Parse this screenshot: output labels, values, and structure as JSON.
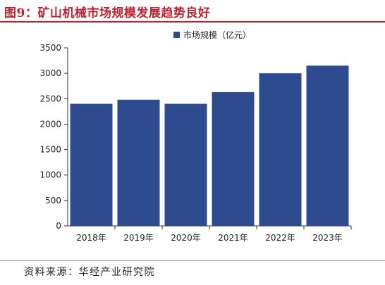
{
  "figure": {
    "title": "图9：矿山机械市场规模发展趋势良好",
    "source_label": "资料来源：",
    "source": "华经产业研究院"
  },
  "colors": {
    "title": "#c0222f",
    "bar": "#2f4b8f",
    "axis": "#333333"
  },
  "chart_data": {
    "type": "bar",
    "categories": [
      "2018年",
      "2019年",
      "2020年",
      "2021年",
      "2022年",
      "2023年"
    ],
    "series": [
      {
        "name": "市场规模（亿元）",
        "values": [
          2400,
          2480,
          2400,
          2630,
          3000,
          3150
        ]
      }
    ],
    "yticks": [
      0,
      500,
      1000,
      1500,
      2000,
      2500,
      3000,
      3500
    ],
    "ylim": [
      0,
      3500
    ],
    "grid": false,
    "legend_position": "top-center"
  }
}
